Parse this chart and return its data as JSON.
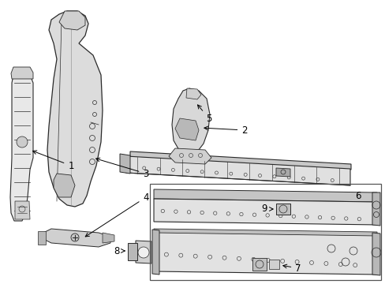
{
  "bg_color": "#ffffff",
  "line_color": "#2a2a2a",
  "fill_light": "#e8e8e8",
  "fill_mid": "#d0d0d0",
  "fill_dark": "#b8b8b8",
  "label_fontsize": 8.5,
  "fig_width": 4.89,
  "fig_height": 3.6,
  "dpi": 100
}
